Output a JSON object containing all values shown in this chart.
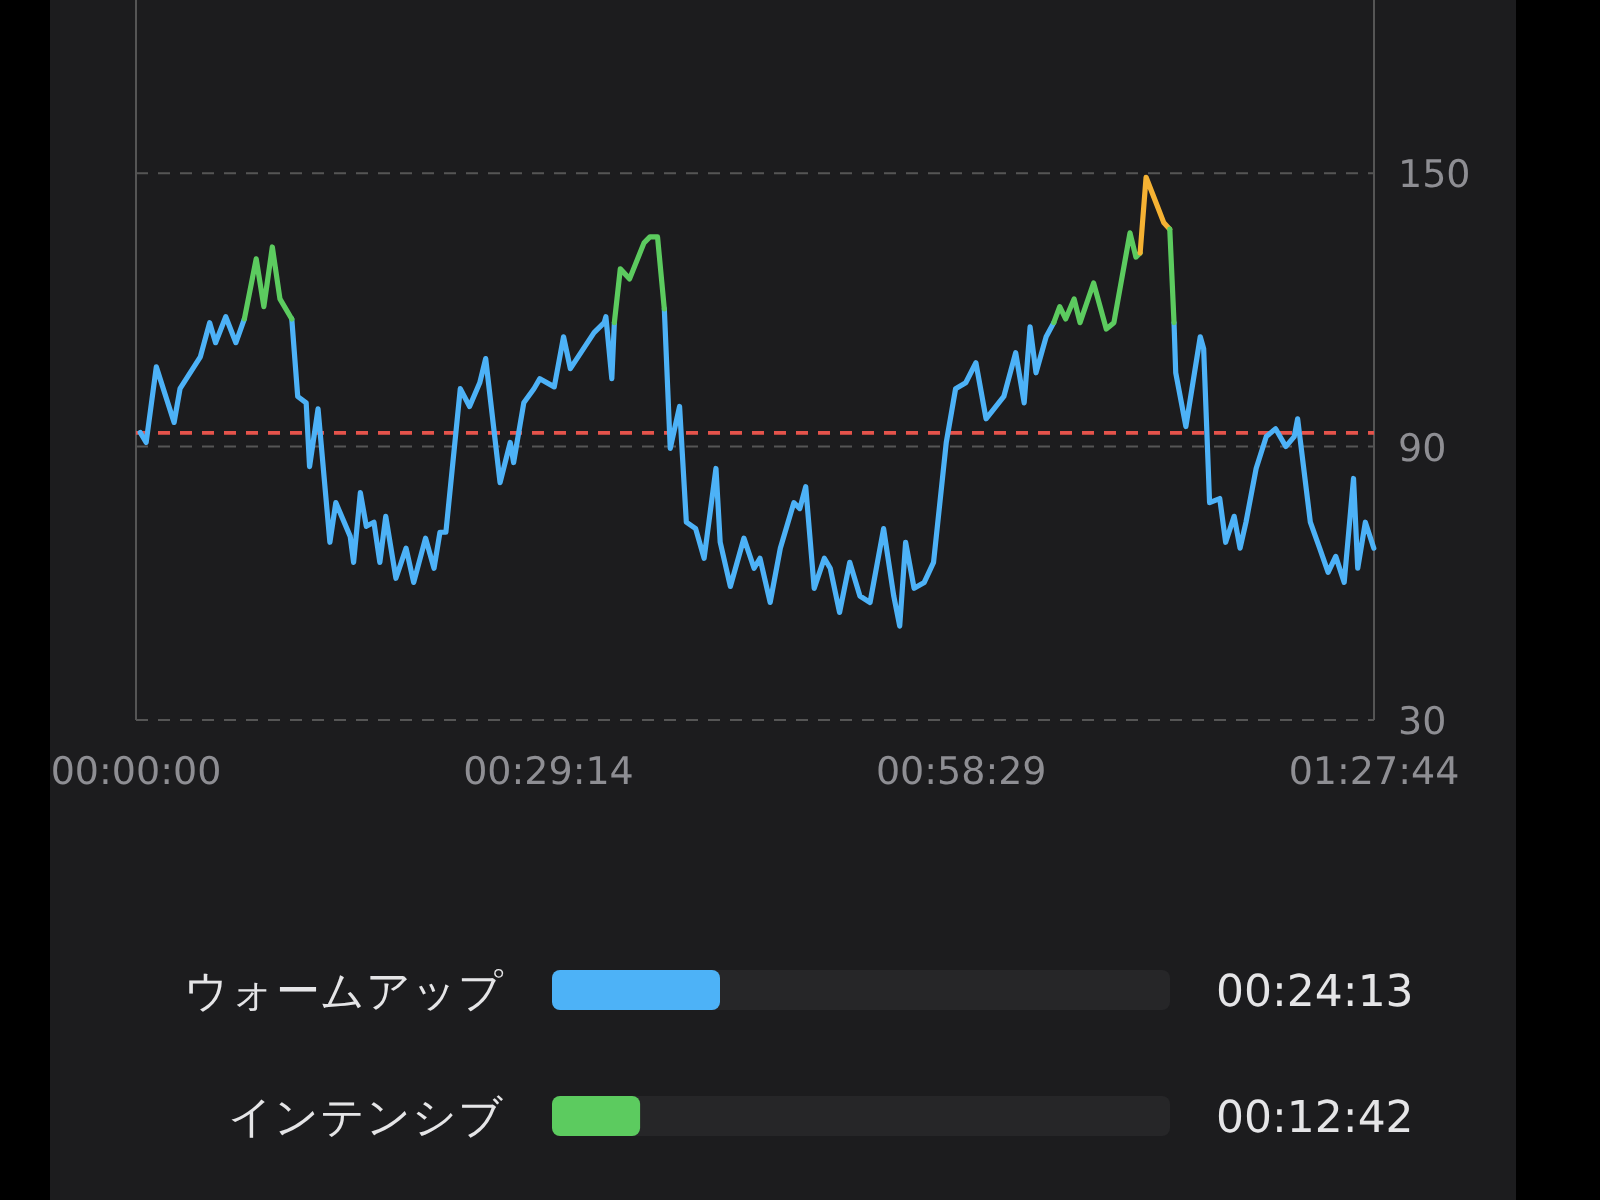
{
  "chart_data": [
    {
      "type": "line",
      "xlim": [
        0,
        1.4622
      ],
      "ylim": [
        30,
        188
      ],
      "xticks": [
        {
          "value": 0,
          "label": "00:00:00"
        },
        {
          "value": 0.4872,
          "label": "00:29:14"
        },
        {
          "value": 0.9747,
          "label": "00:58:29"
        },
        {
          "value": 1.4622,
          "label": "01:27:44"
        }
      ],
      "yticks": [
        30,
        90,
        150
      ],
      "grid": "y",
      "line_style": "solid",
      "ref_lines": [
        {
          "axis": "y",
          "value": 93,
          "color": "#e5534b",
          "line_style": "dashed"
        }
      ],
      "series": [
        {
          "color": "#4db2f7",
          "x": [
            0.005,
            0.012,
            0.024,
            0.045,
            0.052,
            0.076,
            0.087,
            0.094,
            0.106,
            0.118,
            0.128
          ],
          "values": [
            93.1,
            90.9,
            107.5,
            95.3,
            102.7,
            109.7,
            117.2,
            112.8,
            118.5,
            112.8,
            118.0
          ]
        },
        {
          "color": "#4db2f7",
          "x": [
            0.184,
            0.191,
            0.201,
            0.205,
            0.215,
            0.229,
            0.236,
            0.253,
            0.257,
            0.265,
            0.272,
            0.281,
            0.288,
            0.295,
            0.307,
            0.319,
            0.328,
            0.342,
            0.352,
            0.359,
            0.366,
            0.383,
            0.394,
            0.406,
            0.413,
            0.43,
            0.442,
            0.446,
            0.458,
            0.47,
            0.477,
            0.494,
            0.505,
            0.513,
            0.541,
            0.553,
            0.555,
            0.562,
            0.565
          ],
          "values": [
            118.0,
            101.0,
            99.6,
            85.6,
            98.3,
            69.0,
            77.7,
            70.3,
            64.6,
            79.9,
            72.5,
            73.4,
            64.6,
            74.7,
            61.1,
            67.7,
            60.2,
            69.9,
            63.3,
            71.2,
            71.2,
            102.7,
            98.8,
            104.0,
            109.3,
            82.1,
            90.9,
            86.5,
            99.6,
            102.7,
            104.9,
            103.1,
            114.1,
            107.1,
            115.0,
            117.2,
            118.5,
            104.9,
            117.2
          ]
        },
        {
          "color": "#4db2f7",
          "x": [
            0.624,
            0.631,
            0.642,
            0.65,
            0.661,
            0.671,
            0.685,
            0.69,
            0.702,
            0.718,
            0.73,
            0.737,
            0.749,
            0.761,
            0.777,
            0.784,
            0.791,
            0.801,
            0.813,
            0.82,
            0.831,
            0.843,
            0.855,
            0.867,
            0.883,
            0.895,
            0.902,
            0.909,
            0.919,
            0.931,
            0.942,
            0.957,
            0.968,
            0.98,
            0.992,
            1.004,
            1.025,
            1.039,
            1.049,
            1.056,
            1.063,
            1.075,
            1.084
          ],
          "values": [
            120.2,
            89.6,
            98.8,
            73.4,
            72.0,
            65.5,
            85.2,
            69.0,
            59.3,
            69.9,
            63.3,
            65.5,
            55.8,
            67.7,
            77.7,
            76.4,
            81.2,
            58.9,
            65.5,
            63.3,
            53.6,
            64.6,
            57.2,
            55.8,
            72.0,
            57.2,
            50.6,
            69.0,
            58.9,
            60.2,
            64.6,
            90.9,
            102.7,
            104.0,
            108.4,
            96.1,
            101.0,
            110.6,
            99.6,
            116.3,
            106.2,
            114.1,
            117.2
          ]
        },
        {
          "color": "#4db2f7",
          "x": [
            1.226,
            1.228,
            1.24,
            1.257,
            1.261,
            1.268,
            1.28,
            1.287,
            1.297,
            1.304,
            1.311,
            1.323,
            1.335,
            1.346,
            1.358,
            1.368,
            1.372,
            1.387,
            1.398,
            1.408,
            1.417,
            1.427,
            1.438,
            1.443,
            1.452,
            1.462
          ],
          "values": [
            117.2,
            106.2,
            94.4,
            114.1,
            111.5,
            77.7,
            78.6,
            69.0,
            74.7,
            67.7,
            73.4,
            85.2,
            92.2,
            93.9,
            90.0,
            92.2,
            96.1,
            73.4,
            67.7,
            62.4,
            65.9,
            60.2,
            83.0,
            63.3,
            73.4,
            67.7
          ]
        },
        {
          "color": "#5ccb5f",
          "x": [
            0.128,
            0.142,
            0.151,
            0.161,
            0.17,
            0.184
          ],
          "values": [
            118.0,
            131.2,
            120.7,
            133.8,
            122.4,
            118.0
          ]
        },
        {
          "color": "#5ccb5f",
          "x": [
            0.565,
            0.572,
            0.583,
            0.6,
            0.607,
            0.616,
            0.624
          ],
          "values": [
            117.2,
            129.0,
            126.8,
            134.7,
            136.0,
            136.0,
            120.2
          ]
        },
        {
          "color": "#5ccb5f",
          "x": [
            1.084,
            1.091,
            1.098,
            1.108,
            1.115,
            1.131,
            1.146,
            1.155,
            1.174,
            1.181,
            1.186
          ],
          "values": [
            117.2,
            120.7,
            118.0,
            122.4,
            117.2,
            125.9,
            115.8,
            117.2,
            136.9,
            131.6,
            132.5
          ]
        },
        {
          "color": "#f5b233",
          "x": [
            1.186,
            1.193,
            1.205,
            1.214,
            1.221
          ],
          "values": [
            132.5,
            149.1,
            143.4,
            139.1,
            137.7
          ]
        },
        {
          "color": "#5ccb5f",
          "x": [
            1.221,
            1.226
          ],
          "values": [
            137.7,
            117.2
          ]
        }
      ]
    },
    {
      "type": "bar",
      "orientation": "horizontal",
      "categories": [
        "ウォームアップ",
        "インテンシブ"
      ],
      "values": [
        24.217,
        12.7
      ],
      "colors": [
        "#4db2f7",
        "#5ccb5f"
      ],
      "value_labels": [
        "00:24:13",
        "00:12:42"
      ]
    }
  ]
}
